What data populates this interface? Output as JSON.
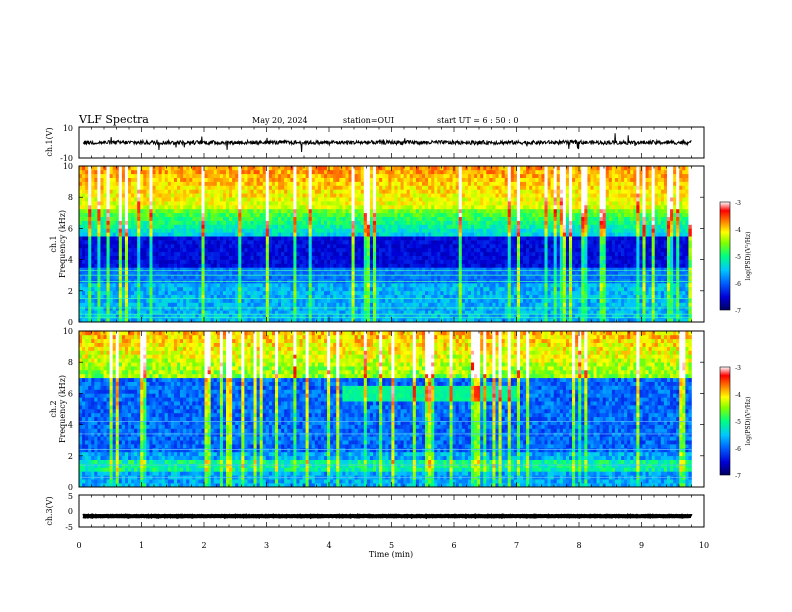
{
  "header": {
    "title": "VLF Spectra",
    "date": "May 20, 2024",
    "station": "station=OUI",
    "start": "start  UT =   6 : 50 : 0"
  },
  "chart_data": [
    {
      "type": "line",
      "panel": "ch1-waveform",
      "ylabel": "ch.1(V)",
      "ylim": [
        -10,
        10
      ],
      "y_ticks": [
        "10",
        "-10"
      ],
      "baseline": 0,
      "xlim": [
        0,
        10
      ],
      "color": "#000000"
    },
    {
      "type": "heatmap",
      "panel": "ch1-spectrogram",
      "ylabel_line1": "ch.1",
      "ylabel_line2": "Frequency (kHz)",
      "ylim": [
        0,
        10
      ],
      "y_ticks": [
        "0",
        "2",
        "4",
        "6",
        "8",
        "10"
      ],
      "xlim": [
        0,
        10
      ],
      "data_end_min": 9.8,
      "colorbar": {
        "label": "log(PSD)(V²/Hz)",
        "range": [
          -7,
          -3
        ],
        "ticks": [
          "-3",
          "-4",
          "-5",
          "-6",
          "-7"
        ]
      }
    },
    {
      "type": "heatmap",
      "panel": "ch2-spectrogram",
      "ylabel_line1": "ch.2",
      "ylabel_line2": "Frequency (kHz)",
      "ylim": [
        0,
        10
      ],
      "y_ticks": [
        "0",
        "2",
        "4",
        "6",
        "8",
        "10"
      ],
      "xlim": [
        0,
        10
      ],
      "data_end_min": 9.8,
      "band_start_min": 4.2,
      "band_end_min": 7.0,
      "band_khz": 6,
      "colorbar": {
        "label": "log(PSD)(V²/Hz)",
        "range": [
          -7,
          -3
        ],
        "ticks": [
          "-3",
          "-4",
          "-5",
          "-6",
          "-7"
        ]
      }
    },
    {
      "type": "line",
      "panel": "ch3-waveform",
      "ylabel": "ch.3(V)",
      "ylim": [
        -5,
        5
      ],
      "y_ticks": [
        "5",
        "0",
        "-5"
      ],
      "baseline": -1.6,
      "xlim": [
        0,
        10
      ],
      "color": "#000000"
    }
  ],
  "x_axis": {
    "label": "Time (min)",
    "ticks": [
      "0",
      "1",
      "2",
      "3",
      "4",
      "5",
      "6",
      "7",
      "8",
      "9",
      "10"
    ]
  },
  "colors": {
    "colormap": [
      "#000060",
      "#0000d8",
      "#0060ff",
      "#00c8ff",
      "#00ff80",
      "#80ff00",
      "#ffff00",
      "#ff8000",
      "#ff0000",
      "#ffffff"
    ]
  }
}
